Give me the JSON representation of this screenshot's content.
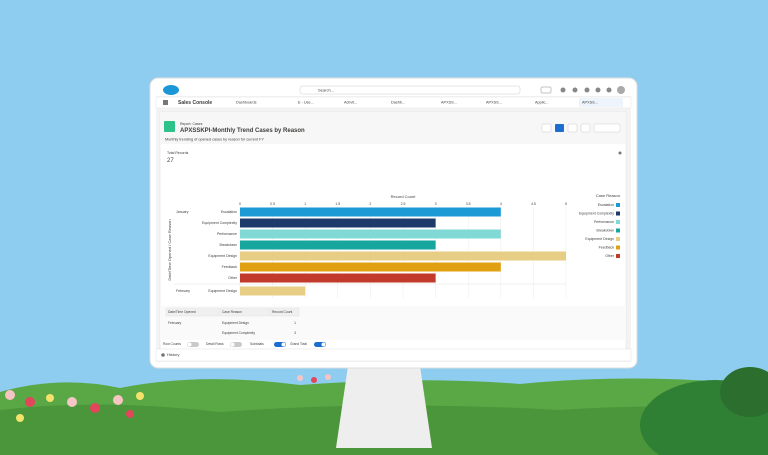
{
  "header": {
    "search": "Search...",
    "app": "Sales Console",
    "nav": [
      "Dashboards",
      "E - Use...",
      "Activit...",
      "Dashb...",
      "APXSS...",
      "APXSS...",
      "Applic...",
      "APXSS..."
    ]
  },
  "report": {
    "object": "Report: Cases",
    "title": "APXSSKPI-Monthly Trend Cases by Reason",
    "description": "Monthly trending of opened cases by reason for current FY",
    "total_label": "Total Records",
    "total": 27
  },
  "chart_data": {
    "type": "bar",
    "orientation": "horizontal",
    "x_label": "Record Count",
    "y_label": "Date/Time Opened / Case Reason",
    "legend_title": "Case Reason",
    "legend": [
      {
        "name": "Escalation",
        "color": "#1b9ad6"
      },
      {
        "name": "Equipment Complexity",
        "color": "#1d3a6b"
      },
      {
        "name": "Performance",
        "color": "#80d9d4"
      },
      {
        "name": "Breakdown",
        "color": "#17a69d"
      },
      {
        "name": "Equipment Design",
        "color": "#e8cd84"
      },
      {
        "name": "Feedback",
        "color": "#e1a012"
      },
      {
        "name": "Other",
        "color": "#c23a2b"
      }
    ],
    "groups": [
      {
        "name": "January",
        "categories": [
          "Escalation",
          "Equipment Complexity",
          "Performance",
          "Breakdown",
          "Equipment Design",
          "Feedback",
          "Other"
        ],
        "values": [
          4,
          3,
          4,
          3,
          5,
          4,
          3
        ]
      },
      {
        "name": "February",
        "categories": [
          "Equipment Design"
        ],
        "values": [
          1
        ]
      }
    ],
    "xlim": [
      0,
      5
    ],
    "xticks": [
      0,
      0.5,
      1,
      1.5,
      2,
      2.5,
      3,
      3.5,
      4,
      4.5,
      5
    ],
    "grid": true
  },
  "table": {
    "columns": [
      "Date/Time Opened",
      "Case Reason",
      "Record Count"
    ],
    "rows": [
      {
        "month": "February",
        "reason": "Equipment Design",
        "count": 1
      },
      {
        "reason": "Equipment Complexity",
        "count": 3
      }
    ]
  },
  "footer": {
    "toggles": [
      "Row Counts",
      "Detail Rows",
      "Subtotals",
      "Grand Total"
    ],
    "toggle_states": [
      false,
      false,
      true,
      true
    ],
    "history": "History"
  }
}
